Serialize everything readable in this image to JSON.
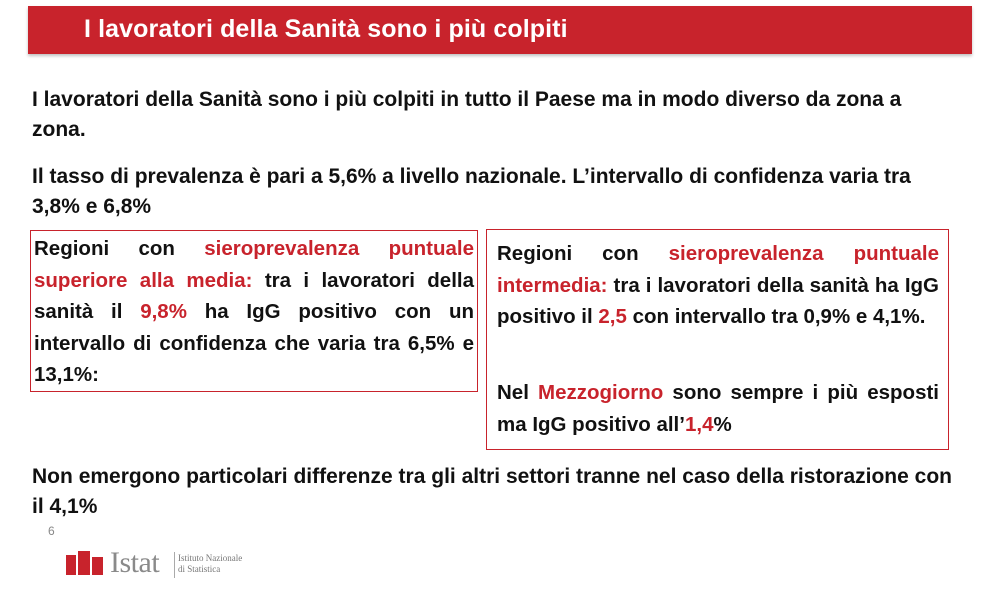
{
  "header": {
    "title": "I lavoratori della Sanità sono i più colpiti"
  },
  "paragraphs": {
    "p1": "I lavoratori della Sanità sono i più colpiti in tutto il Paese ma in modo diverso da zona a zona.",
    "p2": "Il tasso di prevalenza è pari a 5,6% a livello nazionale. L’intervallo di confidenza varia tra 3,8% e 6,8%",
    "p3": "Non emergono particolari differenze tra gli altri settori tranne nel caso della ristorazione con il 4,1%"
  },
  "box_left": {
    "prefix": "Regioni con ",
    "highlight": "sieroprevalenza puntuale superiore alla media:",
    "mid": " tra i lavoratori della sanità il ",
    "value": "9,8%",
    "suffix": " ha IgG positivo con un intervallo di confidenza che varia tra 6,5% e 13,1%:"
  },
  "box_right": {
    "prefix": "Regioni con ",
    "highlight": "sieroprevalenza puntuale intermedia:",
    "mid": " tra i lavoratori della sanità ha IgG positivo il ",
    "value": "2,5",
    "suffix": " con intervallo tra 0,9% e 4,1%.",
    "p2_prefix": "Nel ",
    "p2_highlight": "Mezzogiorno",
    "p2_mid": " sono sempre i più esposti ma IgG positivo all’",
    "p2_value": "1,4",
    "p2_suffix": "%"
  },
  "footer": {
    "page_number": "6",
    "logo_word": "Istat",
    "logo_sub_line1": "Istituto Nazionale",
    "logo_sub_line2": "di Statistica"
  },
  "colors": {
    "accent": "#c8232c",
    "text": "#111111"
  }
}
